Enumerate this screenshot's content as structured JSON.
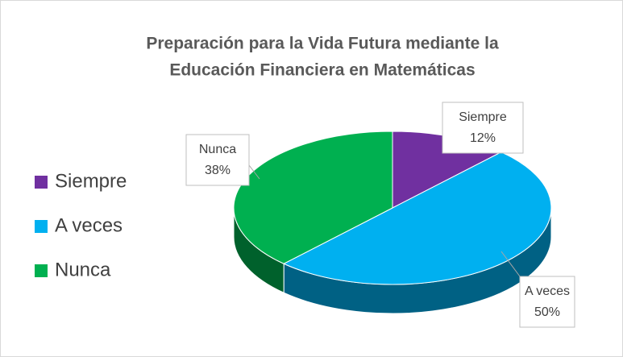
{
  "chart_data": {
    "type": "pie",
    "title": [
      "Preparación para la Vida Futura mediante la",
      "Educación Financiera en Matemáticas"
    ],
    "categories": [
      "Siempre",
      "A veces",
      "Nunca"
    ],
    "values": [
      12,
      50,
      38
    ],
    "value_labels": [
      "12%",
      "50%",
      "38%"
    ],
    "colors": [
      "#7030a0",
      "#00b0f0",
      "#00b050"
    ],
    "legend": "left"
  }
}
